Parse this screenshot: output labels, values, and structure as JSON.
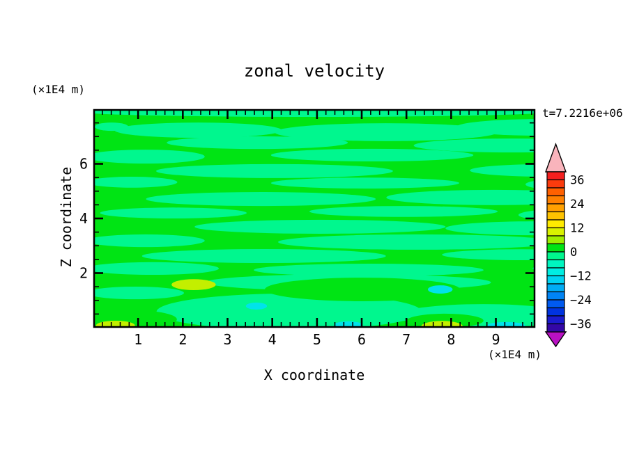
{
  "figure": {
    "title": "zonal velocity",
    "timestamp": "t=7.2216e+06",
    "x_axis": {
      "title": "X coordinate",
      "units": "(×1E4 m)",
      "min": 0,
      "max": 9.88,
      "major_step": 1,
      "minor_step": 0.2,
      "tick_labels": [
        "1",
        "2",
        "3",
        "4",
        "5",
        "6",
        "7",
        "8",
        "9"
      ]
    },
    "z_axis": {
      "title": "Z coordinate",
      "units": "(×1E4 m)",
      "min": 0,
      "max": 8,
      "major_step": 2,
      "minor_step": 0.5,
      "tick_labels": [
        "2",
        "4",
        "6"
      ]
    }
  },
  "chart_data": {
    "type": "heatmap",
    "title": "zonal velocity",
    "xlabel": "X coordinate (×1E4 m)",
    "ylabel": "Z coordinate (×1E4 m)",
    "time_annotation": "t=7.2216e+06",
    "x_range": [
      0,
      9.88
    ],
    "z_range": [
      0,
      8
    ],
    "contour_levels": {
      "min": -40,
      "max": 40,
      "step": 4
    },
    "colorbar": {
      "labels": [
        36,
        24,
        12,
        0,
        -12,
        -24,
        -36
      ],
      "label_step": 12,
      "colors_top_to_bottom": [
        "#f41f1f",
        "#fb3b0d",
        "#ff6000",
        "#ff8000",
        "#ffa000",
        "#ffc300",
        "#ffeb00",
        "#d9f200",
        "#9fee00",
        "#00e414",
        "#00f78e",
        "#00f6c0",
        "#00eee2",
        "#00d4f2",
        "#00acf5",
        "#0084f5",
        "#005af0",
        "#0033df",
        "#1b1bce",
        "#3307a6"
      ],
      "over_color": "#f9b4bc",
      "under_color": "#b911c3"
    },
    "palette": {
      "p0": "#00e414",
      "n0": "#00f78e",
      "p2": "#c3ef00",
      "n2": "#00e3ea"
    },
    "field_summary": "zonal velocity mostly between -4 and 4 m-units: horizontal streaks of 0..4 (green) and -4..0 (spring green); isolated 8..12 maxima (yellow-green) near z=1.6 x=2.2 and along bottom edge at x=0.5 and x=7.8; isolated -12..-8 minima (cyan) near x=3.6, x=5.6, x=7.6 and bottom right",
    "base_level": "p0",
    "regions": [
      [
        "n0",
        0.5,
        0.013,
        0.52,
        0.022
      ],
      [
        "n0",
        0.041,
        0.08,
        0.038,
        0.019
      ],
      [
        "n0",
        0.237,
        0.096,
        0.189,
        0.035
      ],
      [
        "n0",
        0.662,
        0.105,
        0.252,
        0.041
      ],
      [
        "n0",
        1.009,
        0.083,
        0.189,
        0.038
      ],
      [
        "n0",
        0.371,
        0.153,
        0.205,
        0.029
      ],
      [
        "n0",
        0.946,
        0.166,
        0.221,
        0.032
      ],
      [
        "n0",
        0.118,
        0.217,
        0.134,
        0.032
      ],
      [
        "n0",
        0.631,
        0.21,
        0.229,
        0.029
      ],
      [
        "n0",
        0.41,
        0.283,
        0.268,
        0.032
      ],
      [
        "n0",
        1.033,
        0.28,
        0.181,
        0.029
      ],
      [
        "n0",
        0.087,
        0.334,
        0.103,
        0.025
      ],
      [
        "n0",
        0.615,
        0.338,
        0.213,
        0.025
      ],
      [
        "n0",
        1.096,
        0.344,
        0.118,
        0.029
      ],
      [
        "n0",
        0.379,
        0.411,
        0.26,
        0.032
      ],
      [
        "n0",
        0.907,
        0.404,
        0.244,
        0.035
      ],
      [
        "n0",
        0.181,
        0.475,
        0.166,
        0.025
      ],
      [
        "n0",
        0.702,
        0.468,
        0.213,
        0.025
      ],
      [
        "n0",
        1.088,
        0.484,
        0.126,
        0.029
      ],
      [
        "n0",
        0.513,
        0.538,
        0.284,
        0.032
      ],
      [
        "n0",
        1.002,
        0.545,
        0.205,
        0.032
      ],
      [
        "n0",
        0.118,
        0.602,
        0.134,
        0.029
      ],
      [
        "n0",
        0.733,
        0.608,
        0.315,
        0.035
      ],
      [
        "n0",
        0.386,
        0.672,
        0.276,
        0.032
      ],
      [
        "n0",
        0.97,
        0.666,
        0.181,
        0.025
      ],
      [
        "n0",
        0.134,
        0.729,
        0.15,
        0.029
      ],
      [
        "n0",
        0.623,
        0.736,
        0.26,
        0.029
      ],
      [
        "n0",
        1.104,
        0.729,
        0.11,
        0.025
      ],
      [
        "n0",
        0.095,
        0.841,
        0.11,
        0.029
      ],
      [
        "n0",
        0.577,
        0.793,
        0.323,
        0.038
      ],
      [
        "n0",
        0.443,
        0.927,
        0.3,
        0.083
      ],
      [
        "n0",
        0.883,
        0.946,
        0.197,
        0.054
      ],
      [
        "p0",
        0.609,
        0.825,
        0.221,
        0.054
      ],
      [
        "p0",
        0.071,
        0.962,
        0.118,
        0.045
      ],
      [
        "p0",
        0.796,
        0.968,
        0.087,
        0.032
      ],
      [
        "p2",
        0.227,
        0.803,
        0.05,
        0.025
      ],
      [
        "p2",
        0.05,
        0.99,
        0.044,
        0.022
      ],
      [
        "p2",
        0.789,
        0.994,
        0.047,
        0.025
      ],
      [
        "n2",
        0.369,
        0.901,
        0.024,
        0.016
      ],
      [
        "n2",
        0.577,
        0.987,
        0.032,
        0.016
      ],
      [
        "n2",
        0.785,
        0.825,
        0.028,
        0.019
      ],
      [
        "n2",
        0.934,
        0.99,
        0.043,
        0.016
      ]
    ]
  }
}
